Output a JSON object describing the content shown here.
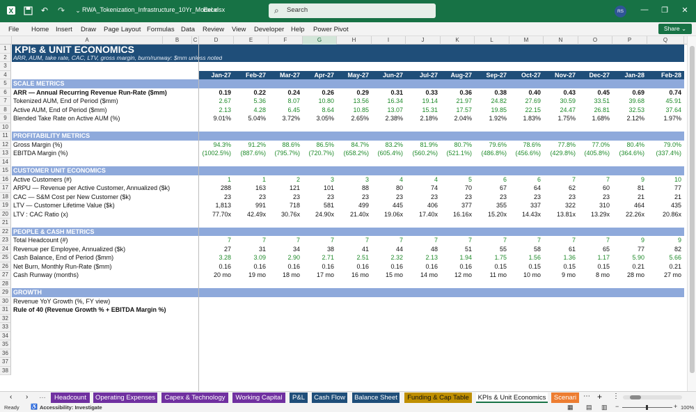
{
  "app": {
    "filename": "RWA_Tokenization_Infrastructure_10Yr_Model.xlsx",
    "app_name": "Excel",
    "search_placeholder": "Search",
    "avatar_initials": "RS",
    "share_label": "Share"
  },
  "menu": [
    "File",
    "Home",
    "Insert",
    "Draw",
    "Page Layout",
    "Formulas",
    "Data",
    "Review",
    "View",
    "Developer",
    "Help",
    "Power Pivot"
  ],
  "columns": [
    "A",
    "B",
    "C",
    "D",
    "E",
    "F",
    "G",
    "H",
    "I",
    "J",
    "K",
    "L",
    "M",
    "N",
    "O",
    "P",
    "Q"
  ],
  "selected_column": "G",
  "title": "KPIs & UNIT ECONOMICS",
  "subtitle": "ARR, AUM, take rate, CAC, LTV, gross margin, burn/runway: $mm unless noted",
  "months": [
    "Jan-27",
    "Feb-27",
    "Mar-27",
    "Apr-27",
    "May-27",
    "Jun-27",
    "Jul-27",
    "Aug-27",
    "Sep-27",
    "Oct-27",
    "Nov-27",
    "Dec-27",
    "Jan-28",
    "Feb-28"
  ],
  "rows": [
    {
      "n": "1",
      "type": "title",
      "label": "KPIs & UNIT ECONOMICS"
    },
    {
      "n": "2",
      "type": "subtitle",
      "label": "ARR, AUM, take rate, CAC, LTV, gross margin, burn/runway: $mm unless noted"
    },
    {
      "n": "3",
      "type": "blank"
    },
    {
      "n": "4",
      "type": "dates"
    },
    {
      "n": "5",
      "type": "section",
      "label": "SCALE METRICS"
    },
    {
      "n": "6",
      "type": "data",
      "label": "ARR — Annual Recurring Revenue Run-Rate ($mm)",
      "bold": true,
      "vals": [
        "0.19",
        "0.22",
        "0.24",
        "0.26",
        "0.29",
        "0.31",
        "0.33",
        "0.36",
        "0.38",
        "0.40",
        "0.43",
        "0.45",
        "0.69",
        "0.74"
      ]
    },
    {
      "n": "7",
      "type": "data",
      "label": "Tokenized AUM, End of Period ($mm)",
      "green": true,
      "vals": [
        "2.67",
        "5.36",
        "8.07",
        "10.80",
        "13.56",
        "16.34",
        "19.14",
        "21.97",
        "24.82",
        "27.69",
        "30.59",
        "33.51",
        "39.68",
        "45.91"
      ]
    },
    {
      "n": "8",
      "type": "data",
      "label": "Active AUM, End of Period ($mm)",
      "green": true,
      "vals": [
        "2.13",
        "4.28",
        "6.45",
        "8.64",
        "10.85",
        "13.07",
        "15.31",
        "17.57",
        "19.85",
        "22.15",
        "24.47",
        "26.81",
        "32.53",
        "37.64"
      ]
    },
    {
      "n": "9",
      "type": "data",
      "label": "Blended Take Rate on Active AUM (%)",
      "vals": [
        "9.01%",
        "5.04%",
        "3.72%",
        "3.05%",
        "2.65%",
        "2.38%",
        "2.18%",
        "2.04%",
        "1.92%",
        "1.83%",
        "1.75%",
        "1.68%",
        "2.12%",
        "1.97%"
      ]
    },
    {
      "n": "10",
      "type": "blank"
    },
    {
      "n": "11",
      "type": "section",
      "label": "PROFITABILITY METRICS"
    },
    {
      "n": "12",
      "type": "data",
      "label": "Gross Margin (%)",
      "green": true,
      "vals": [
        "94.3%",
        "91.2%",
        "88.6%",
        "86.5%",
        "84.7%",
        "83.2%",
        "81.9%",
        "80.7%",
        "79.6%",
        "78.6%",
        "77.8%",
        "77.0%",
        "80.4%",
        "79.0%"
      ]
    },
    {
      "n": "13",
      "type": "data",
      "label": "EBITDA Margin (%)",
      "green": true,
      "vals": [
        "(1002.5%)",
        "(887.6%)",
        "(795.7%)",
        "(720.7%)",
        "(658.2%)",
        "(605.4%)",
        "(560.2%)",
        "(521.1%)",
        "(486.8%)",
        "(456.6%)",
        "(429.8%)",
        "(405.8%)",
        "(364.6%)",
        "(337.4%)"
      ]
    },
    {
      "n": "14",
      "type": "blank"
    },
    {
      "n": "15",
      "type": "section",
      "label": "CUSTOMER UNIT ECONOMICS"
    },
    {
      "n": "16",
      "type": "data",
      "label": "Active Customers (#)",
      "green": true,
      "vals": [
        "1",
        "1",
        "2",
        "3",
        "3",
        "4",
        "4",
        "5",
        "6",
        "6",
        "7",
        "7",
        "9",
        "10"
      ]
    },
    {
      "n": "17",
      "type": "data",
      "label": "ARPU — Revenue per Active Customer, Annualized ($k)",
      "vals": [
        "288",
        "163",
        "121",
        "101",
        "88",
        "80",
        "74",
        "70",
        "67",
        "64",
        "62",
        "60",
        "81",
        "77"
      ]
    },
    {
      "n": "18",
      "type": "data",
      "label": "CAC — S&M Cost per New Customer ($k)",
      "vals": [
        "23",
        "23",
        "23",
        "23",
        "23",
        "23",
        "23",
        "23",
        "23",
        "23",
        "23",
        "23",
        "21",
        "21"
      ]
    },
    {
      "n": "19",
      "type": "data",
      "label": "LTV — Customer Lifetime Value ($k)",
      "vals": [
        "1,813",
        "991",
        "718",
        "581",
        "499",
        "445",
        "406",
        "377",
        "355",
        "337",
        "322",
        "310",
        "464",
        "435"
      ]
    },
    {
      "n": "20",
      "type": "data",
      "label": "LTV : CAC Ratio (x)",
      "vals": [
        "77.70x",
        "42.49x",
        "30.76x",
        "24.90x",
        "21.40x",
        "19.06x",
        "17.40x",
        "16.16x",
        "15.20x",
        "14.43x",
        "13.81x",
        "13.29x",
        "22.26x",
        "20.86x"
      ]
    },
    {
      "n": "21",
      "type": "blank"
    },
    {
      "n": "22",
      "type": "section",
      "label": "PEOPLE & CASH METRICS"
    },
    {
      "n": "23",
      "type": "data",
      "label": "Total Headcount (#)",
      "green": true,
      "vals": [
        "7",
        "7",
        "7",
        "7",
        "7",
        "7",
        "7",
        "7",
        "7",
        "7",
        "7",
        "7",
        "9",
        "9"
      ]
    },
    {
      "n": "24",
      "type": "data",
      "label": "Revenue per Employee, Annualized ($k)",
      "vals": [
        "27",
        "31",
        "34",
        "38",
        "41",
        "44",
        "48",
        "51",
        "55",
        "58",
        "61",
        "65",
        "77",
        "82"
      ]
    },
    {
      "n": "25",
      "type": "data",
      "label": "Cash Balance, End of Period ($mm)",
      "green": true,
      "vals": [
        "3.28",
        "3.09",
        "2.90",
        "2.71",
        "2.51",
        "2.32",
        "2.13",
        "1.94",
        "1.75",
        "1.56",
        "1.36",
        "1.17",
        "5.90",
        "5.66"
      ]
    },
    {
      "n": "26",
      "type": "data",
      "label": "Net Burn, Monthly Run-Rate ($mm)",
      "vals": [
        "0.16",
        "0.16",
        "0.16",
        "0.16",
        "0.16",
        "0.16",
        "0.16",
        "0.16",
        "0.15",
        "0.15",
        "0.15",
        "0.15",
        "0.21",
        "0.21"
      ]
    },
    {
      "n": "27",
      "type": "data",
      "label": "Cash Runway (months)",
      "vals": [
        "20 mo",
        "19 mo",
        "18 mo",
        "17 mo",
        "16 mo",
        "15 mo",
        "14 mo",
        "12 mo",
        "11 mo",
        "10 mo",
        "9 mo",
        "8 mo",
        "28 mo",
        "27 mo"
      ]
    },
    {
      "n": "28",
      "type": "blank"
    },
    {
      "n": "29",
      "type": "section",
      "label": "GROWTH"
    },
    {
      "n": "30",
      "type": "data",
      "label": "Revenue YoY Growth (%, FY view)",
      "vals": []
    },
    {
      "n": "31",
      "type": "data",
      "label": "Rule of 40 (Revenue Growth % + EBITDA Margin %)",
      "bold": true,
      "vals": []
    },
    {
      "n": "32",
      "type": "blank"
    },
    {
      "n": "33",
      "type": "blank"
    },
    {
      "n": "34",
      "type": "blank"
    },
    {
      "n": "35",
      "type": "blank"
    },
    {
      "n": "36",
      "type": "blank"
    },
    {
      "n": "37",
      "type": "blank"
    },
    {
      "n": "38",
      "type": "blank"
    }
  ],
  "tabs": [
    {
      "label": "Headcount",
      "color": "#7030a0"
    },
    {
      "label": "Operating Expenses",
      "color": "#7030a0"
    },
    {
      "label": "Capex & Technology",
      "color": "#7030a0"
    },
    {
      "label": "Working Capital",
      "color": "#7030a0"
    },
    {
      "label": "P&L",
      "color": "#1f4e79"
    },
    {
      "label": "Cash Flow",
      "color": "#1f4e79"
    },
    {
      "label": "Balance Sheet",
      "color": "#1f4e79"
    },
    {
      "label": "Funding & Cap Table",
      "color": "#bf8f00"
    },
    {
      "label": "KPIs & Unit Economics",
      "color": "#ffffff",
      "active": true
    },
    {
      "label": "Scenari",
      "color": "#ed7d31"
    }
  ],
  "status": {
    "ready": "Ready",
    "accessibility": "Accessibility: Investigate",
    "zoom": "100%"
  }
}
